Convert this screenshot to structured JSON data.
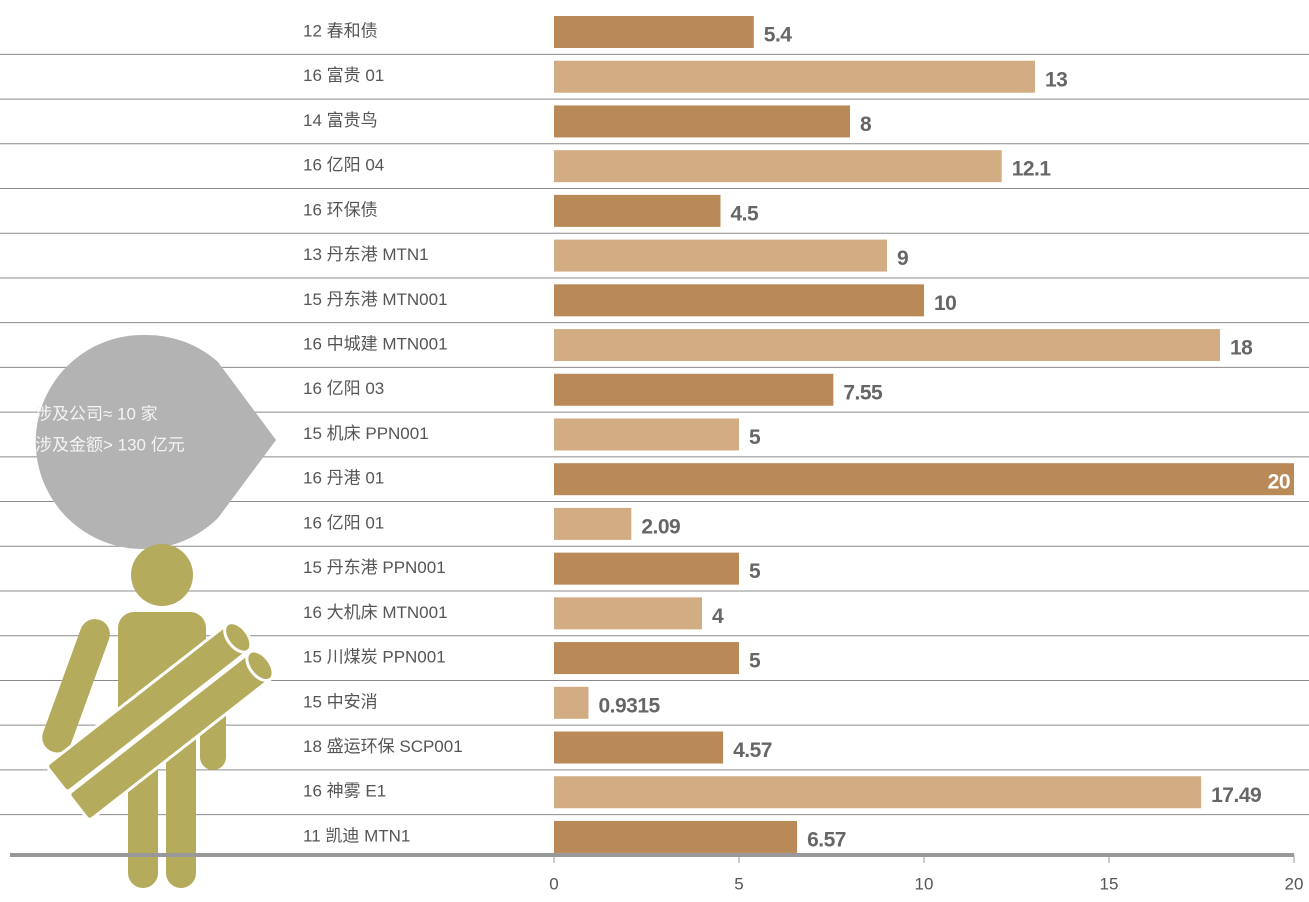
{
  "chart_data": {
    "type": "barh",
    "categories": [
      "12 春和债",
      "16 富贵 01",
      "14 富贵鸟",
      "16 亿阳 04",
      "16 环保债",
      "13 丹东港 MTN1",
      "15 丹东港 MTN001",
      "16 中城建 MTN001",
      "16 亿阳 03",
      "15 机床 PPN001",
      "16 丹港 01",
      "16 亿阳 01",
      "15 丹东港 PPN001",
      "16 大机床 MTN001",
      "15 川煤炭 PPN001",
      "15 中安消",
      "18 盛运环保 SCP001",
      "16 神雾 E1",
      "11 凯迪 MTN1"
    ],
    "values": [
      5.4,
      13,
      8,
      12.1,
      4.5,
      9,
      10,
      18,
      7.55,
      5,
      20,
      2.09,
      5,
      4,
      5,
      0.9315,
      4.57,
      17.49,
      6.57
    ],
    "colors": [
      "#b98a57",
      "#d2ad84",
      "#b98a57",
      "#d2ad84",
      "#b98a57",
      "#d2ad84",
      "#b98a57",
      "#d2ad84",
      "#b98a57",
      "#d2ad84",
      "#b98a57",
      "#d2ad84",
      "#b98a57",
      "#d2ad84",
      "#b98a57",
      "#d2ad84",
      "#b98a57",
      "#d2ad84",
      "#b98a57"
    ],
    "xlim": [
      0,
      20
    ],
    "xticks": [
      0,
      5,
      10,
      15,
      20
    ],
    "annotations": [
      "涉及公司≈ 10 家",
      "涉及金额> 130 亿元"
    ]
  }
}
